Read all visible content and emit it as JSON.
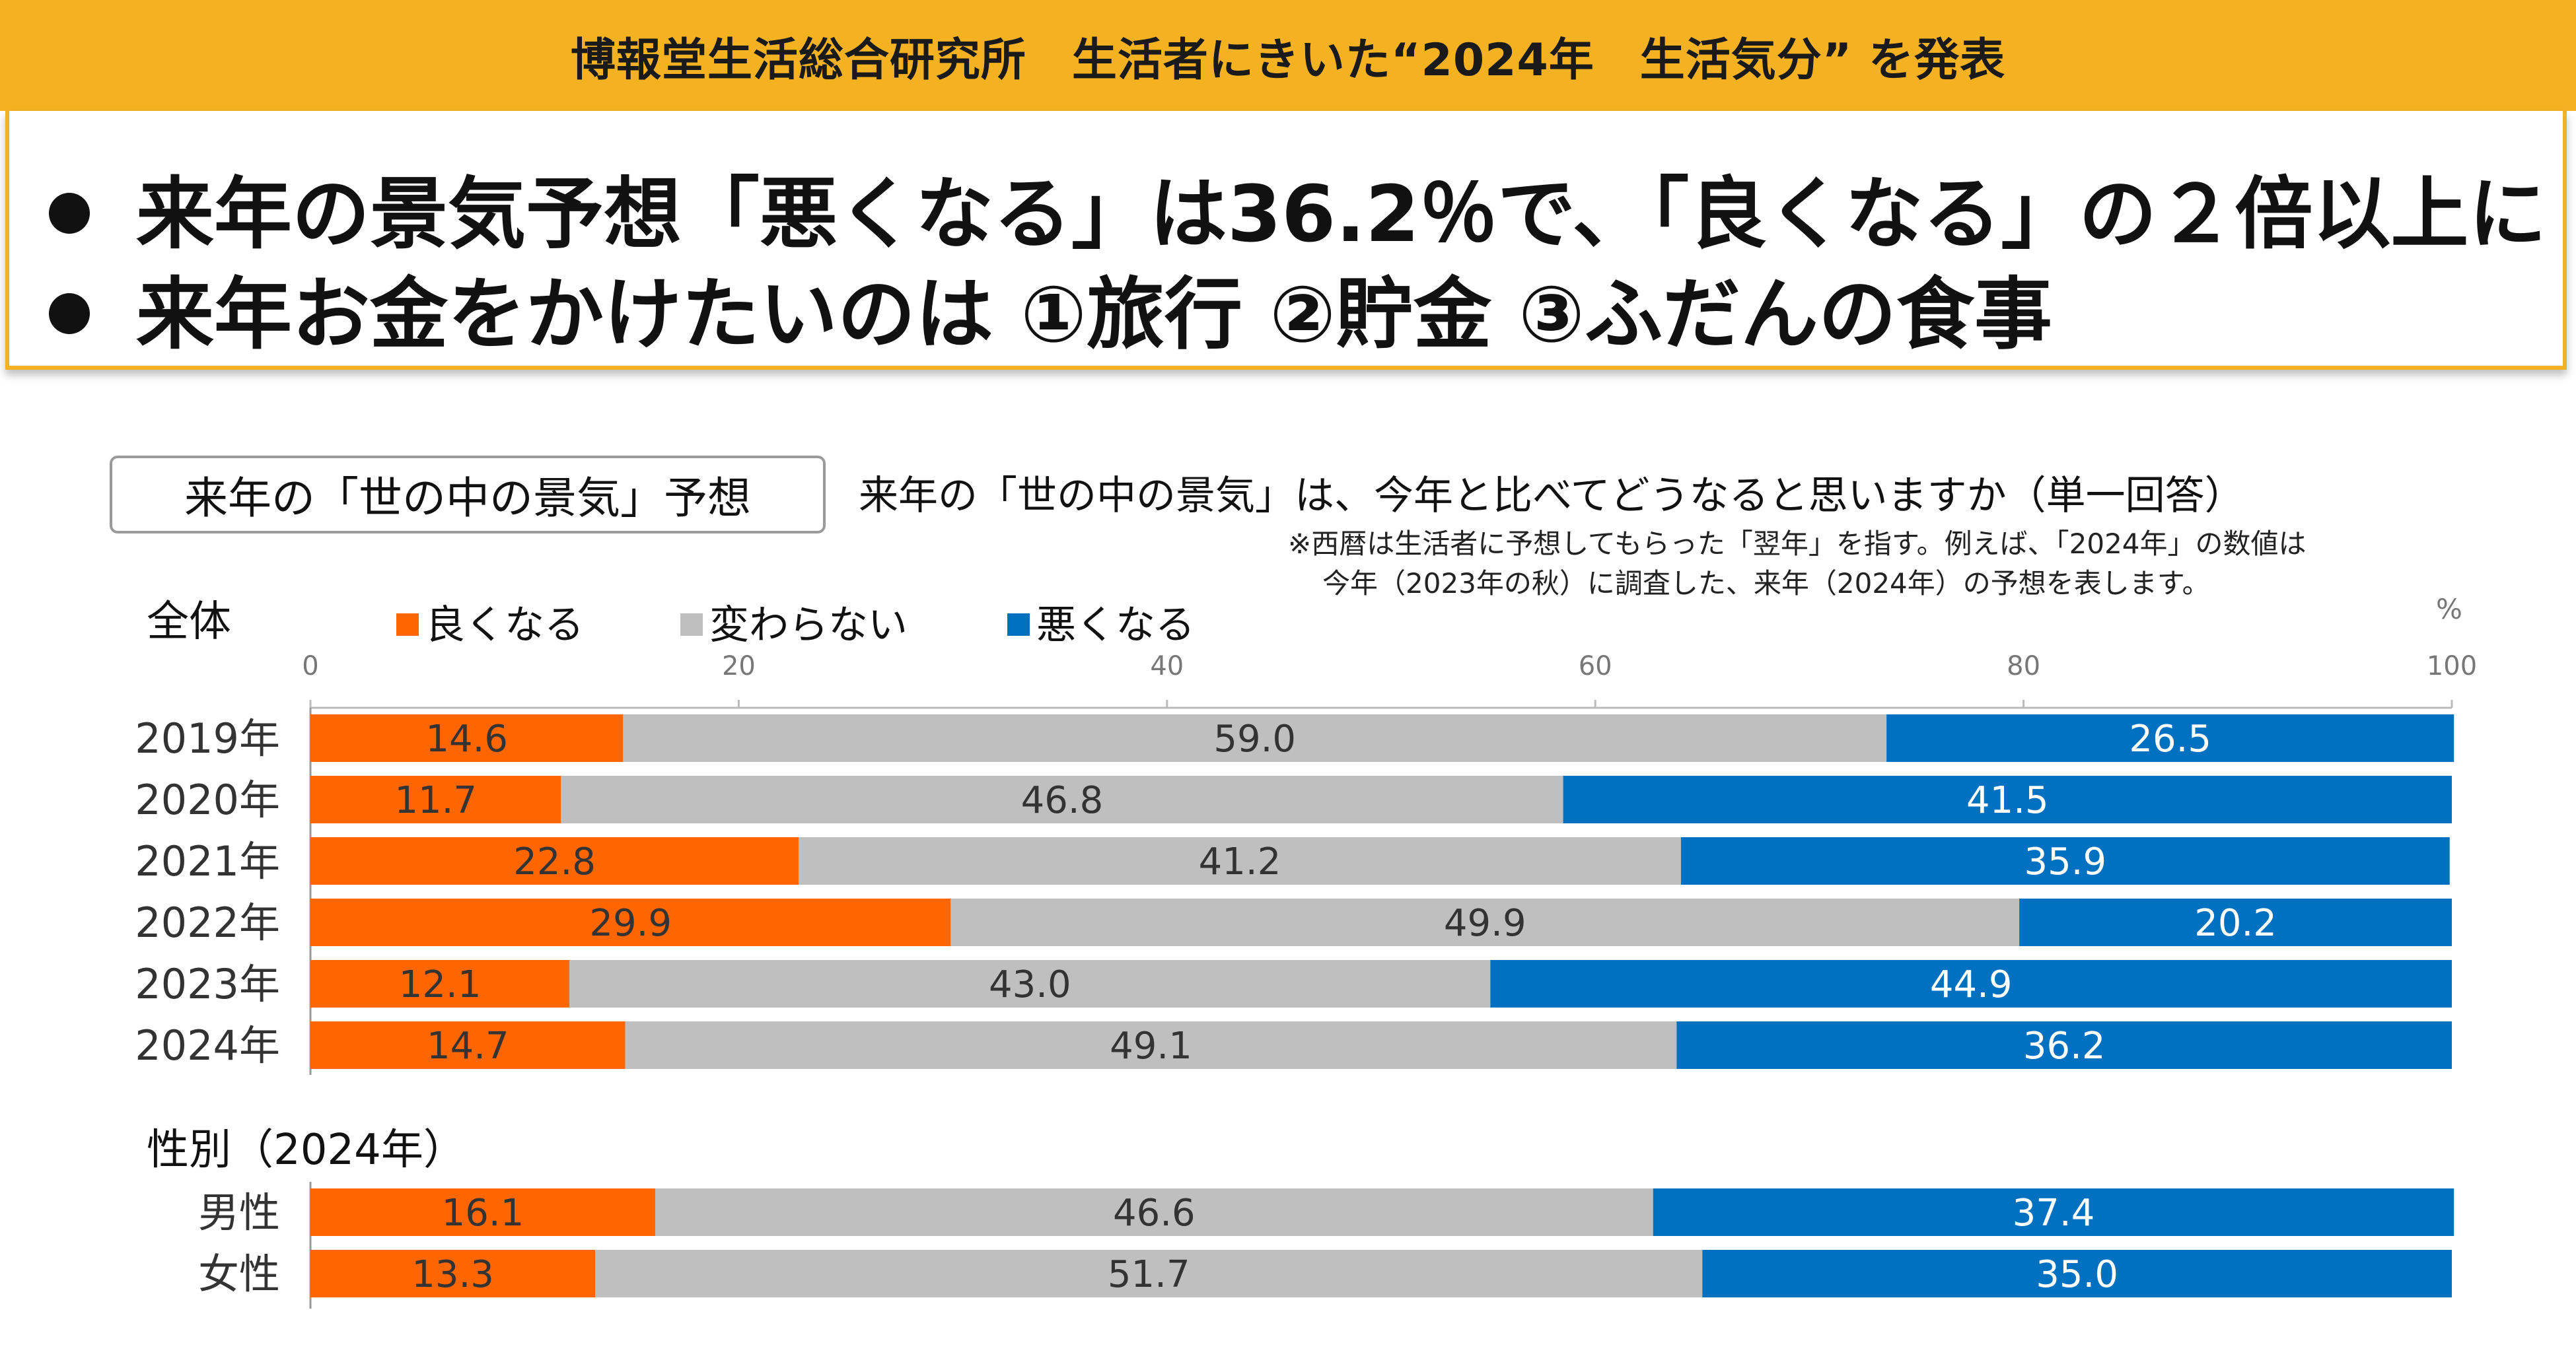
{
  "header": {
    "banner": "博報堂生活総合研究所　生活者にきいた“2024年　生活気分” を発表",
    "headline1": "来年の景気予想「悪くなる」は36.2％で、「良くなる」の２倍以上に",
    "headline2": "来年お金をかけたいのは ①旅行 ②貯金 ③ふだんの食事"
  },
  "panel": {
    "title": "来年の「世の中の景気」予想",
    "question": "来年の「世の中の景気」は、今年と比べてどうなると思いますか（単一回答）",
    "note1": "※西暦は生活者に予想してもらった「翌年」を指す。例えば、「2024年」の数値は",
    "note2": "今年（2023年の秋）に調査した、来年（2024年）の予想を表します。"
  },
  "colors": {
    "good": "#ff6600",
    "same": "#bfbfbf",
    "bad": "#0070c0",
    "banner": "#f4b223"
  },
  "chart_data": {
    "type": "bar",
    "orientation": "horizontal",
    "stacked": true,
    "unit_label": "%",
    "xlim": [
      0,
      100
    ],
    "xticks": [
      "0",
      "20",
      "40",
      "60",
      "80",
      "100"
    ],
    "legend": [
      "良くなる",
      "変わらない",
      "悪くなる"
    ],
    "groups": [
      {
        "label": "全体",
        "categories": [
          "2019年",
          "2020年",
          "2021年",
          "2022年",
          "2023年",
          "2024年"
        ],
        "series": [
          {
            "name": "良くなる",
            "values": [
              14.6,
              11.7,
              22.8,
              29.9,
              12.1,
              14.7
            ]
          },
          {
            "name": "変わらない",
            "values": [
              59.0,
              46.8,
              41.2,
              49.9,
              43.0,
              49.1
            ]
          },
          {
            "name": "悪くなる",
            "values": [
              26.5,
              41.5,
              35.9,
              20.2,
              44.9,
              36.2
            ]
          }
        ]
      },
      {
        "label": "性別（2024年）",
        "categories": [
          "男性",
          "女性"
        ],
        "series": [
          {
            "name": "良くなる",
            "values": [
              16.1,
              13.3
            ]
          },
          {
            "name": "変わらない",
            "values": [
              46.6,
              51.7
            ]
          },
          {
            "name": "悪くなる",
            "values": [
              37.4,
              35.0
            ]
          }
        ]
      }
    ]
  }
}
